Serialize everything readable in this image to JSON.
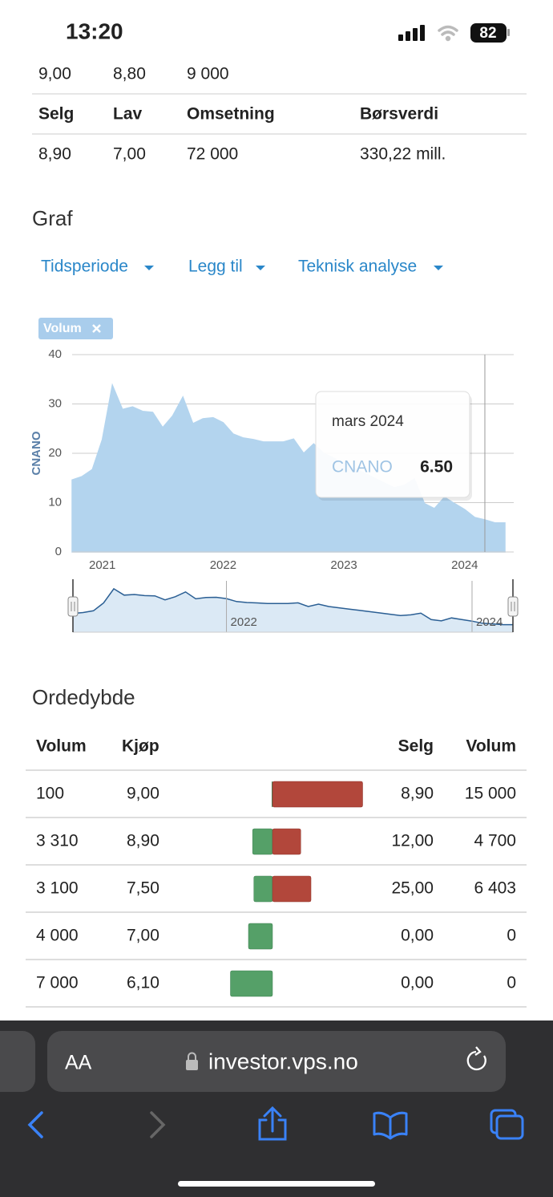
{
  "status_bar": {
    "time": "13:20",
    "battery": "82"
  },
  "quote_table": {
    "top_row": [
      "9,00",
      "8,80",
      "9 000"
    ],
    "header": [
      "Selg",
      "Lav",
      "Omsetning",
      "Børsverdi"
    ],
    "row": [
      "8,90",
      "7,00",
      "72 000",
      "330,22 mill."
    ]
  },
  "graph": {
    "title": "Graf",
    "menus": [
      "Tidsperiode",
      "Legg til",
      "Teknisk analyse"
    ],
    "tag": "Volum"
  },
  "chart_data": {
    "type": "area",
    "y_label": "CNANO",
    "x": [
      2020.75,
      2020.833,
      2020.917,
      2021.0,
      2021.083,
      2021.167,
      2021.25,
      2021.333,
      2021.417,
      2021.5,
      2021.583,
      2021.667,
      2021.75,
      2021.833,
      2021.917,
      2022.0,
      2022.083,
      2022.167,
      2022.25,
      2022.333,
      2022.417,
      2022.5,
      2022.583,
      2022.667,
      2022.75,
      2022.833,
      2022.917,
      2023.0,
      2023.083,
      2023.167,
      2023.25,
      2023.333,
      2023.417,
      2023.5,
      2023.583,
      2023.667,
      2023.75,
      2023.833,
      2023.917,
      2024.0,
      2024.083,
      2024.167,
      2024.25,
      2024.333
    ],
    "series": [
      {
        "name": "CNANO",
        "color": "#b3d4ee",
        "values": [
          14.6,
          15.3,
          16.7,
          22.8,
          33.8,
          28.9,
          29.4,
          28.5,
          28.3,
          25.2,
          27.6,
          31.4,
          26.0,
          27.0,
          27.2,
          26.2,
          23.9,
          23.1,
          22.8,
          22.3,
          22.3,
          22.3,
          22.9,
          20.0,
          21.9,
          20,
          19,
          18,
          17,
          16,
          15,
          14,
          13,
          13.5,
          14.8,
          9.8,
          8.8,
          11.1,
          9.8,
          8.6,
          7.0,
          6.5,
          5.9,
          5.9
        ]
      }
    ],
    "xlim": [
      2020.75,
      2024.333
    ],
    "ylim": [
      0,
      40
    ],
    "xticks": [
      2021,
      2022,
      2023,
      2024
    ],
    "yticks": [
      0,
      10,
      20,
      30,
      40
    ],
    "grid": true,
    "tooltip": {
      "title": "mars 2024",
      "x": 2024.167,
      "value_label": "6.50"
    },
    "navigator": {
      "xticks": [
        2022,
        2024
      ],
      "color": "#2b5f94",
      "fill": "#dbe9f5"
    }
  },
  "order_depth": {
    "title": "Ordedybde",
    "header": [
      "Volum",
      "Kjøp",
      "Selg",
      "Volum"
    ],
    "buy_color": "#55a068",
    "sell_color": "#b2473b",
    "rows": [
      {
        "buy_volume": {
          "value": 100,
          "label": "100"
        },
        "buy": "9,00",
        "sell": "8,90",
        "sell_volume": {
          "value": 15000,
          "label": "15 000"
        }
      },
      {
        "buy_volume": {
          "value": 3310,
          "label": "3 310"
        },
        "buy": "8,90",
        "sell": "12,00",
        "sell_volume": {
          "value": 4700,
          "label": "4 700"
        }
      },
      {
        "buy_volume": {
          "value": 3100,
          "label": "3 100"
        },
        "buy": "7,50",
        "sell": "25,00",
        "sell_volume": {
          "value": 6403,
          "label": "6 403"
        }
      },
      {
        "buy_volume": {
          "value": 4000,
          "label": "4 000"
        },
        "buy": "7,00",
        "sell": "0,00",
        "sell_volume": {
          "value": 0,
          "label": "0"
        }
      },
      {
        "buy_volume": {
          "value": 7000,
          "label": "7 000"
        },
        "buy": "6,10",
        "sell": "0,00",
        "sell_volume": {
          "value": 0,
          "label": "0"
        }
      }
    ]
  },
  "browser": {
    "text_size": "AA",
    "url": "investor.vps.no"
  }
}
